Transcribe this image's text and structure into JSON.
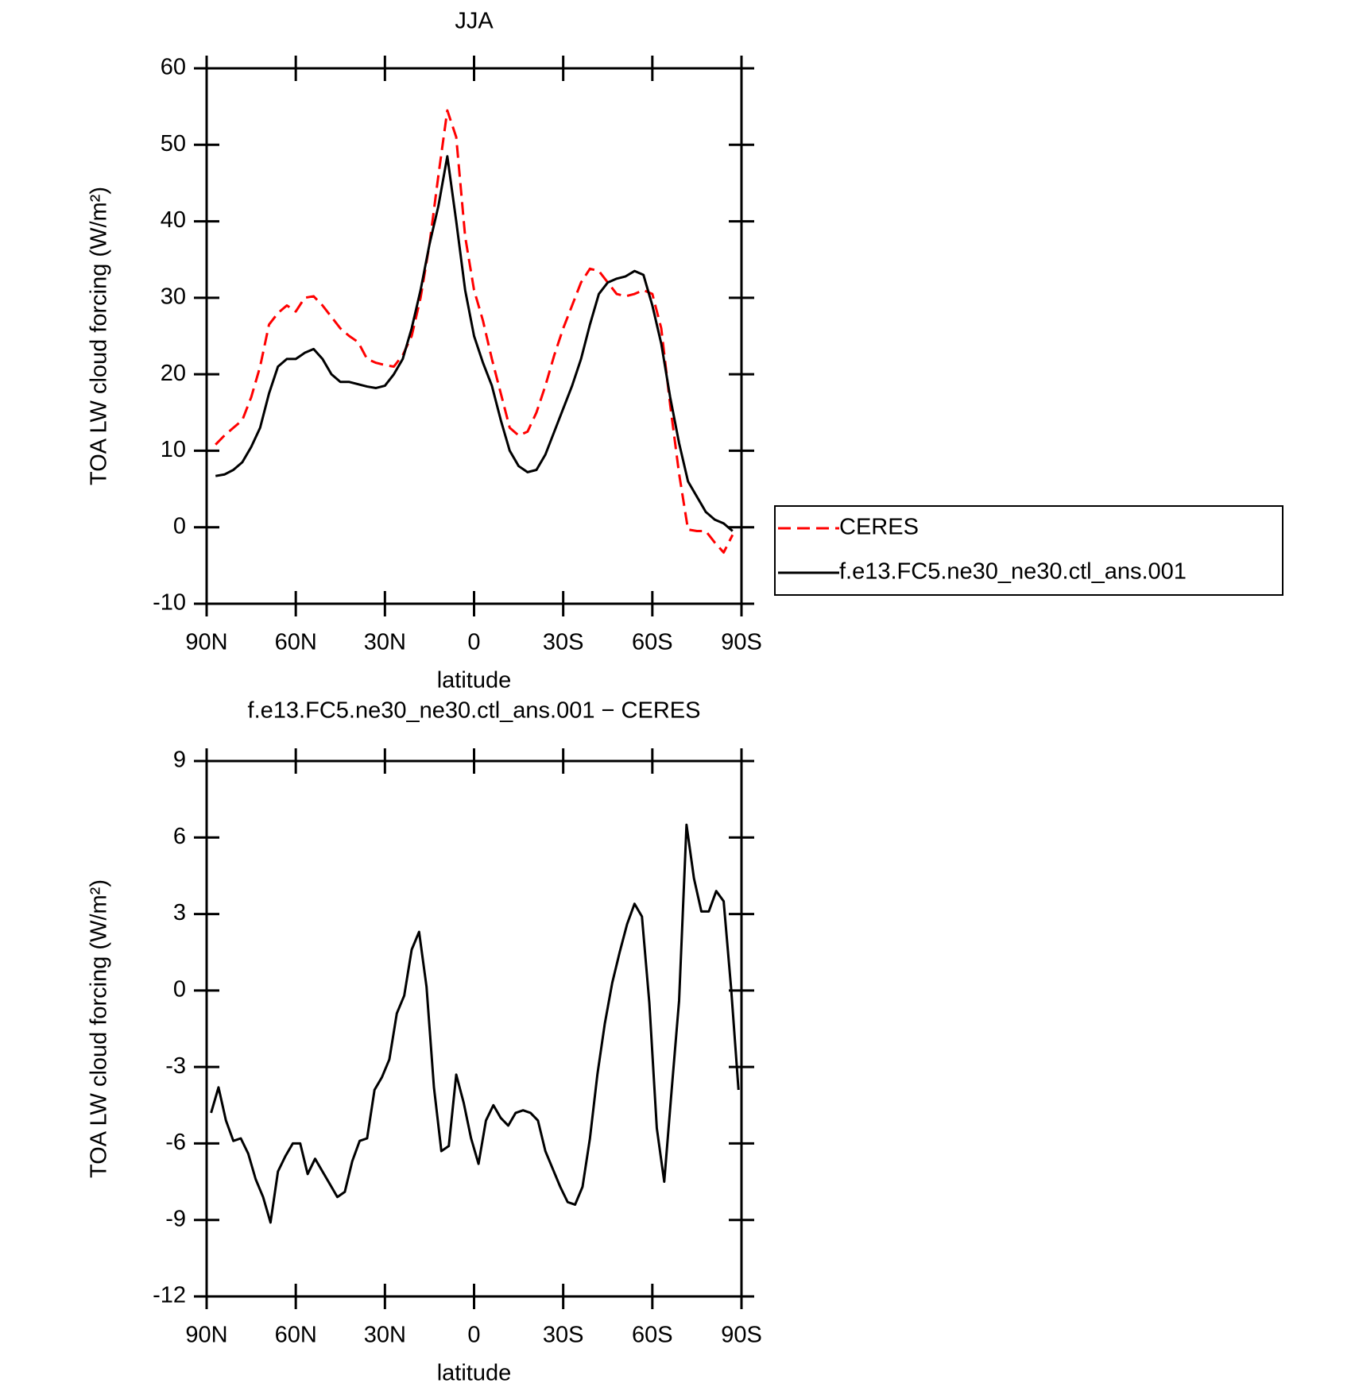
{
  "chart_data": [
    {
      "type": "line",
      "title": "JJA",
      "xlabel": "latitude",
      "ylabel": "TOA LW cloud forcing (W/m²)",
      "x": [
        87,
        84,
        81,
        78,
        75,
        72,
        69,
        66,
        63,
        60,
        57,
        54,
        51,
        48,
        45,
        42,
        39,
        36,
        33,
        30,
        27,
        24,
        21,
        18,
        15,
        12,
        9,
        6,
        3,
        0,
        -3,
        -6,
        -9,
        -12,
        -15,
        -18,
        -21,
        -24,
        -27,
        -30,
        -33,
        -36,
        -39,
        -42,
        -45,
        -48,
        -51,
        -54,
        -57,
        -60,
        -63,
        -66,
        -69,
        -72,
        -75,
        -78,
        -81,
        -84,
        -87
      ],
      "xlim": [
        90,
        -90
      ],
      "xticks": [
        {
          "value": 90,
          "label": "90N"
        },
        {
          "value": 60,
          "label": "60N"
        },
        {
          "value": 30,
          "label": "30N"
        },
        0,
        {
          "value": -30,
          "label": "30S"
        },
        {
          "value": -60,
          "label": "60S"
        },
        {
          "value": -90,
          "label": "90S"
        }
      ],
      "ylim": [
        -10,
        60
      ],
      "yticks": [
        -10,
        0,
        10,
        20,
        30,
        40,
        50,
        60
      ],
      "legend": "right",
      "series": [
        {
          "name": "CERES",
          "color": "#ff0000",
          "dash": true,
          "values": [
            10.8,
            12,
            13,
            14,
            17,
            21,
            26.5,
            28,
            29,
            28.2,
            30,
            30.2,
            29,
            27.5,
            26,
            25,
            24.2,
            22,
            21.5,
            21.2,
            21,
            22.5,
            25,
            30,
            37,
            46,
            54.5,
            51,
            38,
            31,
            27,
            22,
            17.5,
            13,
            12,
            12.5,
            15,
            18.5,
            22.5,
            26,
            29,
            32,
            33.8,
            33.5,
            32,
            30.5,
            30.2,
            30.5,
            31,
            30.5,
            26,
            16,
            7,
            -0.3,
            -0.5,
            -0.5,
            -2,
            -3.3,
            -1
          ]
        },
        {
          "name": "f.e13.FC5.ne30_ne30.ctl_ans.001",
          "color": "#000000",
          "dash": false,
          "values": [
            6.7,
            6.9,
            7.5,
            8.5,
            10.5,
            13,
            17.5,
            21,
            22,
            22,
            22.8,
            23.3,
            22,
            20,
            19,
            19,
            18.7,
            18.4,
            18.2,
            18.5,
            20,
            22,
            26,
            31,
            37,
            42,
            48.5,
            40,
            31,
            25,
            21.5,
            18.5,
            14,
            10,
            8,
            7.2,
            7.5,
            9.5,
            12.5,
            15.5,
            18.5,
            22,
            26.5,
            30.5,
            32,
            32.5,
            32.8,
            33.5,
            33,
            29,
            24,
            17,
            11,
            6,
            4,
            2,
            1,
            0.5,
            -0.5
          ]
        }
      ]
    },
    {
      "type": "line",
      "title": "f.e13.FC5.ne30_ne30.ctl_ans.001 − CERES",
      "xlabel": "latitude",
      "ylabel": "TOA LW cloud forcing (W/m²)",
      "x": [
        88.5,
        86,
        83.5,
        81,
        78.5,
        76,
        73.5,
        71,
        68.5,
        66,
        63.5,
        61,
        58.5,
        56,
        53.5,
        51,
        48.5,
        46,
        43.5,
        41,
        38.5,
        36,
        33.5,
        31,
        28.5,
        26,
        23.5,
        21,
        18.5,
        16,
        13.5,
        11,
        8.5,
        6,
        3.5,
        1,
        -1.5,
        -4,
        -6.5,
        -9,
        -11.5,
        -14,
        -16.5,
        -19,
        -21.5,
        -24,
        -26.5,
        -29,
        -31.5,
        -34,
        -36.5,
        -39,
        -41.5,
        -44,
        -46.5,
        -49,
        -51.5,
        -54,
        -56.5,
        -59,
        -61.5,
        -64,
        -66.5,
        -69,
        -71.5,
        -74,
        -76.5,
        -79,
        -81.5,
        -84,
        -86.5,
        -89
      ],
      "xlim": [
        90,
        -90
      ],
      "xticks": [
        {
          "value": 90,
          "label": "90N"
        },
        {
          "value": 60,
          "label": "60N"
        },
        {
          "value": 30,
          "label": "30N"
        },
        0,
        {
          "value": -30,
          "label": "30S"
        },
        {
          "value": -60,
          "label": "60S"
        },
        {
          "value": -90,
          "label": "90S"
        }
      ],
      "ylim": [
        -12,
        9
      ],
      "yticks": [
        -12,
        -9,
        -6,
        -3,
        0,
        3,
        6,
        9
      ],
      "series": [
        {
          "color": "#000000",
          "dash": false,
          "values": [
            -4.8,
            -3.8,
            -5.1,
            -5.9,
            -5.8,
            -6.4,
            -7.4,
            -8.1,
            -9.1,
            -7.1,
            -6.5,
            -6.0,
            -6.0,
            -7.2,
            -6.6,
            -7.1,
            -7.6,
            -8.1,
            -7.9,
            -6.7,
            -5.9,
            -5.8,
            -3.9,
            -3.4,
            -2.7,
            -0.9,
            -0.2,
            1.6,
            2.3,
            0.15,
            -3.8,
            -6.3,
            -6.1,
            -3.3,
            -4.4,
            -5.8,
            -6.8,
            -5.1,
            -4.5,
            -5.0,
            -5.3,
            -4.8,
            -4.7,
            -4.8,
            -5.1,
            -6.3,
            -7.0,
            -7.7,
            -8.3,
            -8.4,
            -7.7,
            -5.8,
            -3.3,
            -1.3,
            0.3,
            1.5,
            2.6,
            3.4,
            2.9,
            -0.5,
            -5.4,
            -7.5,
            -3.9,
            -0.4,
            6.5,
            4.4,
            3.1,
            3.1,
            3.9,
            3.5,
            0.1,
            -3.9
          ]
        }
      ]
    }
  ]
}
